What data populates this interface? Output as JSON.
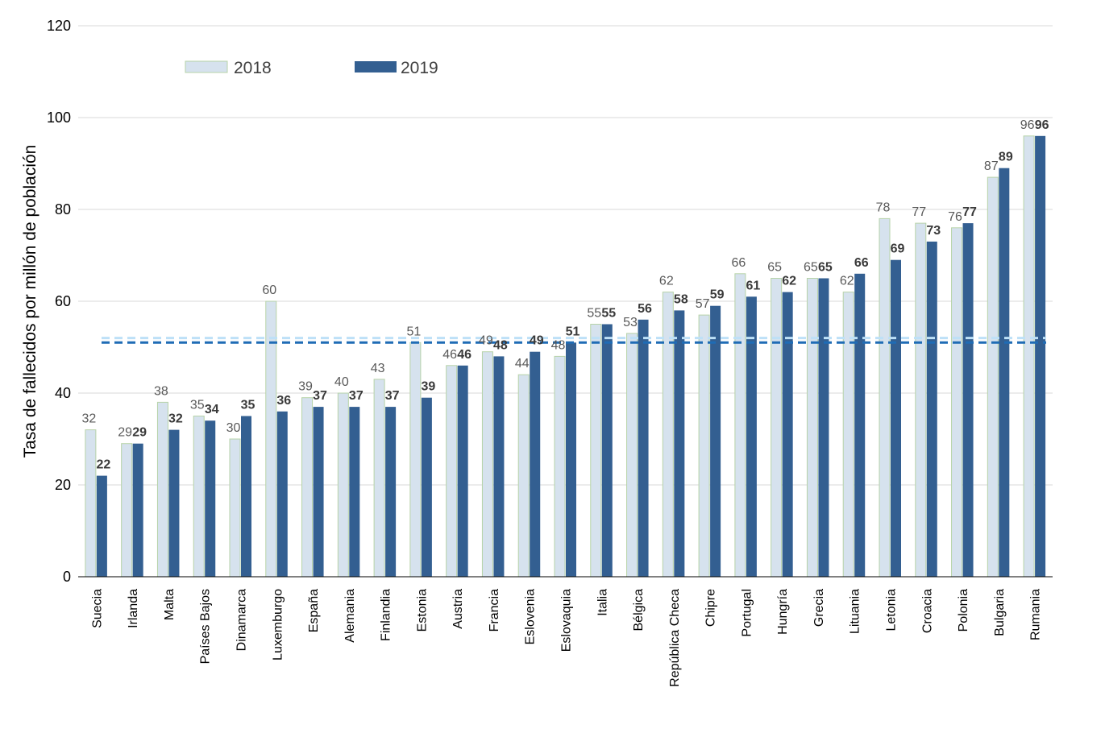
{
  "chart_data": {
    "type": "bar",
    "ylabel": "Tasa de fallecidos por millón de población",
    "ylim": [
      0,
      120
    ],
    "yticks": [
      0,
      20,
      40,
      60,
      80,
      100,
      120
    ],
    "grid": true,
    "legend_position": "top-left",
    "categories": [
      "Suecia",
      "Irlanda",
      "Malta",
      "Países Bajos",
      "Dinamarca",
      "Luxemburgo",
      "España",
      "Alemania",
      "Finlandia",
      "Estonia",
      "Austria",
      "Francia",
      "Eslovenia",
      "Eslovaquia",
      "Italia",
      "Bélgica",
      "República Checa",
      "Chipre",
      "Portugal",
      "Hungría",
      "Grecia",
      "Lituania",
      "Letonia",
      "Croacia",
      "Polonia",
      "Bulgaria",
      "Rumania"
    ],
    "series": [
      {
        "name": "2018",
        "color": "#d6e2ee",
        "stroke": "#b7d3a8",
        "values": [
          32,
          29,
          38,
          35,
          30,
          60,
          39,
          40,
          43,
          51,
          46,
          49,
          44,
          48,
          55,
          53,
          62,
          57,
          66,
          65,
          65,
          62,
          78,
          77,
          76,
          87,
          96
        ]
      },
      {
        "name": "2019",
        "color": "#335f91",
        "values": [
          22,
          29,
          32,
          34,
          35,
          36,
          37,
          37,
          37,
          39,
          46,
          48,
          49,
          51,
          55,
          56,
          58,
          59,
          61,
          62,
          65,
          66,
          69,
          73,
          77,
          89,
          96
        ]
      }
    ],
    "reference_lines": [
      {
        "value": 52,
        "color": "#bde0f7",
        "style": "dashed"
      },
      {
        "value": 51,
        "color": "#1f6cb5",
        "style": "dashed"
      }
    ]
  }
}
